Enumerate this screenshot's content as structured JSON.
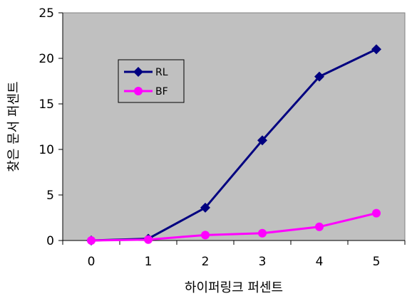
{
  "chart_data": {
    "type": "line",
    "title": "",
    "xlabel": "하이퍼링크 퍼센트",
    "ylabel": "찾은 문서 퍼센트",
    "x": [
      0,
      1,
      2,
      3,
      4,
      5
    ],
    "xticks": [
      "0",
      "1",
      "2",
      "3",
      "4",
      "5"
    ],
    "yticks": [
      "0",
      "5",
      "10",
      "15",
      "20",
      "25"
    ],
    "xlim": [
      -0.5,
      5.5
    ],
    "ylim": [
      0,
      25
    ],
    "grid": false,
    "legend_position": "top-left",
    "plot_background": "#C0C0C0",
    "series": [
      {
        "name": "RL",
        "color": "#000080",
        "marker": "diamond",
        "values": [
          0,
          0.2,
          3.6,
          11,
          18,
          21
        ]
      },
      {
        "name": "BF",
        "color": "#FF00FF",
        "marker": "circle",
        "values": [
          0,
          0.1,
          0.6,
          0.8,
          1.5,
          3
        ]
      }
    ]
  }
}
